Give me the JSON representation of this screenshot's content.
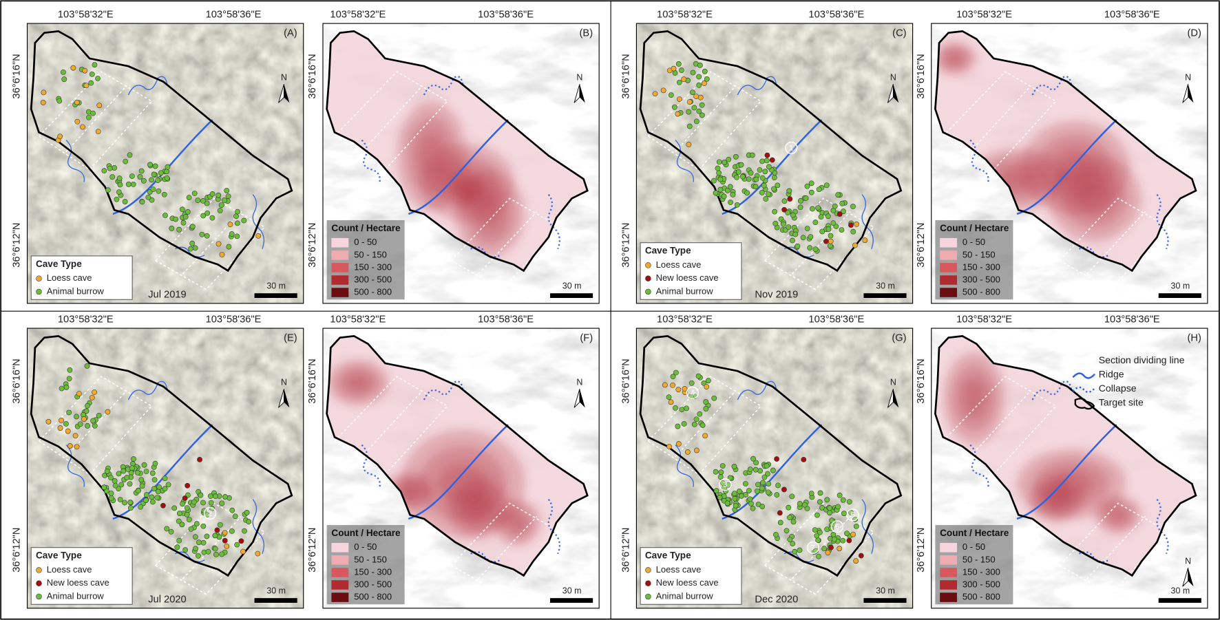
{
  "panels": [
    {
      "label": "(A)",
      "lon_labels": [
        "103°58'32\"E",
        "103°58'36\"E"
      ],
      "lat_labels": [
        "36°6'16\"N",
        "36°6'12\"N"
      ],
      "north": "N",
      "scale": "30 m",
      "date": "Jul 2019",
      "legend": {
        "title": "Cave Type",
        "items": [
          {
            "label": "Loess cave",
            "color": "#f0a830"
          },
          {
            "label": "Animal burrow",
            "color": "#6cbc3c"
          }
        ]
      },
      "annotations": []
    },
    {
      "label": "(B)",
      "lon_labels": [
        "103°58'32\"E",
        "103°58'36\"E"
      ],
      "lat_labels": [
        "36°6'16\"N",
        "36°6'12\"N"
      ],
      "north": "N",
      "scale": "30 m",
      "legend": {
        "title": "Count / Hectare",
        "items": [
          {
            "label": "0 - 50",
            "color": "#f6d6dc"
          },
          {
            "label": "50 - 150",
            "color": "#eeabb0"
          },
          {
            "label": "150 - 300",
            "color": "#d9585e"
          },
          {
            "label": "300 - 500",
            "color": "#b02a30"
          },
          {
            "label": "500 - 800",
            "color": "#6b0d10"
          }
        ]
      }
    },
    {
      "label": "(C)",
      "lon_labels": [
        "103°58'32\"E",
        "103°58'36\"E"
      ],
      "lat_labels": [
        "36°6'16\"N",
        "36°6'12\"N"
      ],
      "north": "N",
      "scale": "30 m",
      "date": "Nov 2019",
      "legend": {
        "title": "Cave Type",
        "items": [
          {
            "label": "Loess cave",
            "color": "#f0a830"
          },
          {
            "label": "New loess cave",
            "color": "#a01010"
          },
          {
            "label": "Animal burrow",
            "color": "#6cbc3c"
          }
        ]
      },
      "annotations": [
        "1"
      ]
    },
    {
      "label": "(D)",
      "lon_labels": [
        "103°58'32\"E",
        "103°58'36\"E"
      ],
      "lat_labels": [
        "36°6'16\"N",
        "36°6'12\"N"
      ],
      "north": "N",
      "scale": "30 m",
      "legend": {
        "title": "Count / Hectare",
        "items": [
          {
            "label": "0 - 50",
            "color": "#f6d6dc"
          },
          {
            "label": "50 - 150",
            "color": "#eeabb0"
          },
          {
            "label": "150 - 300",
            "color": "#d9585e"
          },
          {
            "label": "300 - 500",
            "color": "#b02a30"
          },
          {
            "label": "500 - 800",
            "color": "#6b0d10"
          }
        ]
      }
    },
    {
      "label": "(E)",
      "lon_labels": [
        "103°58'32\"E",
        "103°58'36\"E"
      ],
      "lat_labels": [
        "36°6'16\"N",
        "36°6'12\"N"
      ],
      "north": "N",
      "scale": "30 m",
      "date": "Jul 2020",
      "legend": {
        "title": "Cave Type",
        "items": [
          {
            "label": "Loess cave",
            "color": "#f0a830"
          },
          {
            "label": "New loess cave",
            "color": "#a01010"
          },
          {
            "label": "Animal burrow",
            "color": "#6cbc3c"
          }
        ]
      },
      "annotations": [
        "2"
      ]
    },
    {
      "label": "(F)",
      "lon_labels": [
        "103°58'32\"E",
        "103°58'36\"E"
      ],
      "lat_labels": [
        "36°6'16\"N",
        "36°6'12\"N"
      ],
      "north": "N",
      "scale": "30 m",
      "legend": {
        "title": "Count / Hectare",
        "items": [
          {
            "label": "0 - 50",
            "color": "#f6d6dc"
          },
          {
            "label": "50 - 150",
            "color": "#eeabb0"
          },
          {
            "label": "150 - 300",
            "color": "#d9585e"
          },
          {
            "label": "300 - 500",
            "color": "#b02a30"
          },
          {
            "label": "500 - 800",
            "color": "#6b0d10"
          }
        ]
      }
    },
    {
      "label": "(G)",
      "lon_labels": [
        "103°58'32\"E",
        "103°58'36\"E"
      ],
      "lat_labels": [
        "36°6'16\"N",
        "36°6'12\"N"
      ],
      "north": "N",
      "scale": "30 m",
      "date": "Dec 2020",
      "legend": {
        "title": "Cave Type",
        "items": [
          {
            "label": "Loess cave",
            "color": "#f0a830"
          },
          {
            "label": "New loess cave",
            "color": "#a01010"
          },
          {
            "label": "Animal burrow",
            "color": "#6cbc3c"
          }
        ]
      },
      "annotations": [
        "4",
        "3",
        "5",
        "6",
        "7"
      ]
    },
    {
      "label": "(H)",
      "lon_labels": [
        "103°58'32\"E",
        "103°58'36\"E"
      ],
      "lat_labels": [
        "36°6'16\"N",
        "36°6'12\"N"
      ],
      "north": "N",
      "scale": "30 m",
      "legend": {
        "title": "Count / Hectare",
        "items": [
          {
            "label": "0 - 50",
            "color": "#f6d6dc"
          },
          {
            "label": "50 - 150",
            "color": "#eeabb0"
          },
          {
            "label": "150 - 300",
            "color": "#d9585e"
          },
          {
            "label": "300 - 500",
            "color": "#b02a30"
          },
          {
            "label": "500 - 800",
            "color": "#6b0d10"
          }
        ]
      }
    }
  ],
  "map_legend": [
    "Section dividing line",
    "Ridge",
    "Collapse",
    "Target site"
  ]
}
